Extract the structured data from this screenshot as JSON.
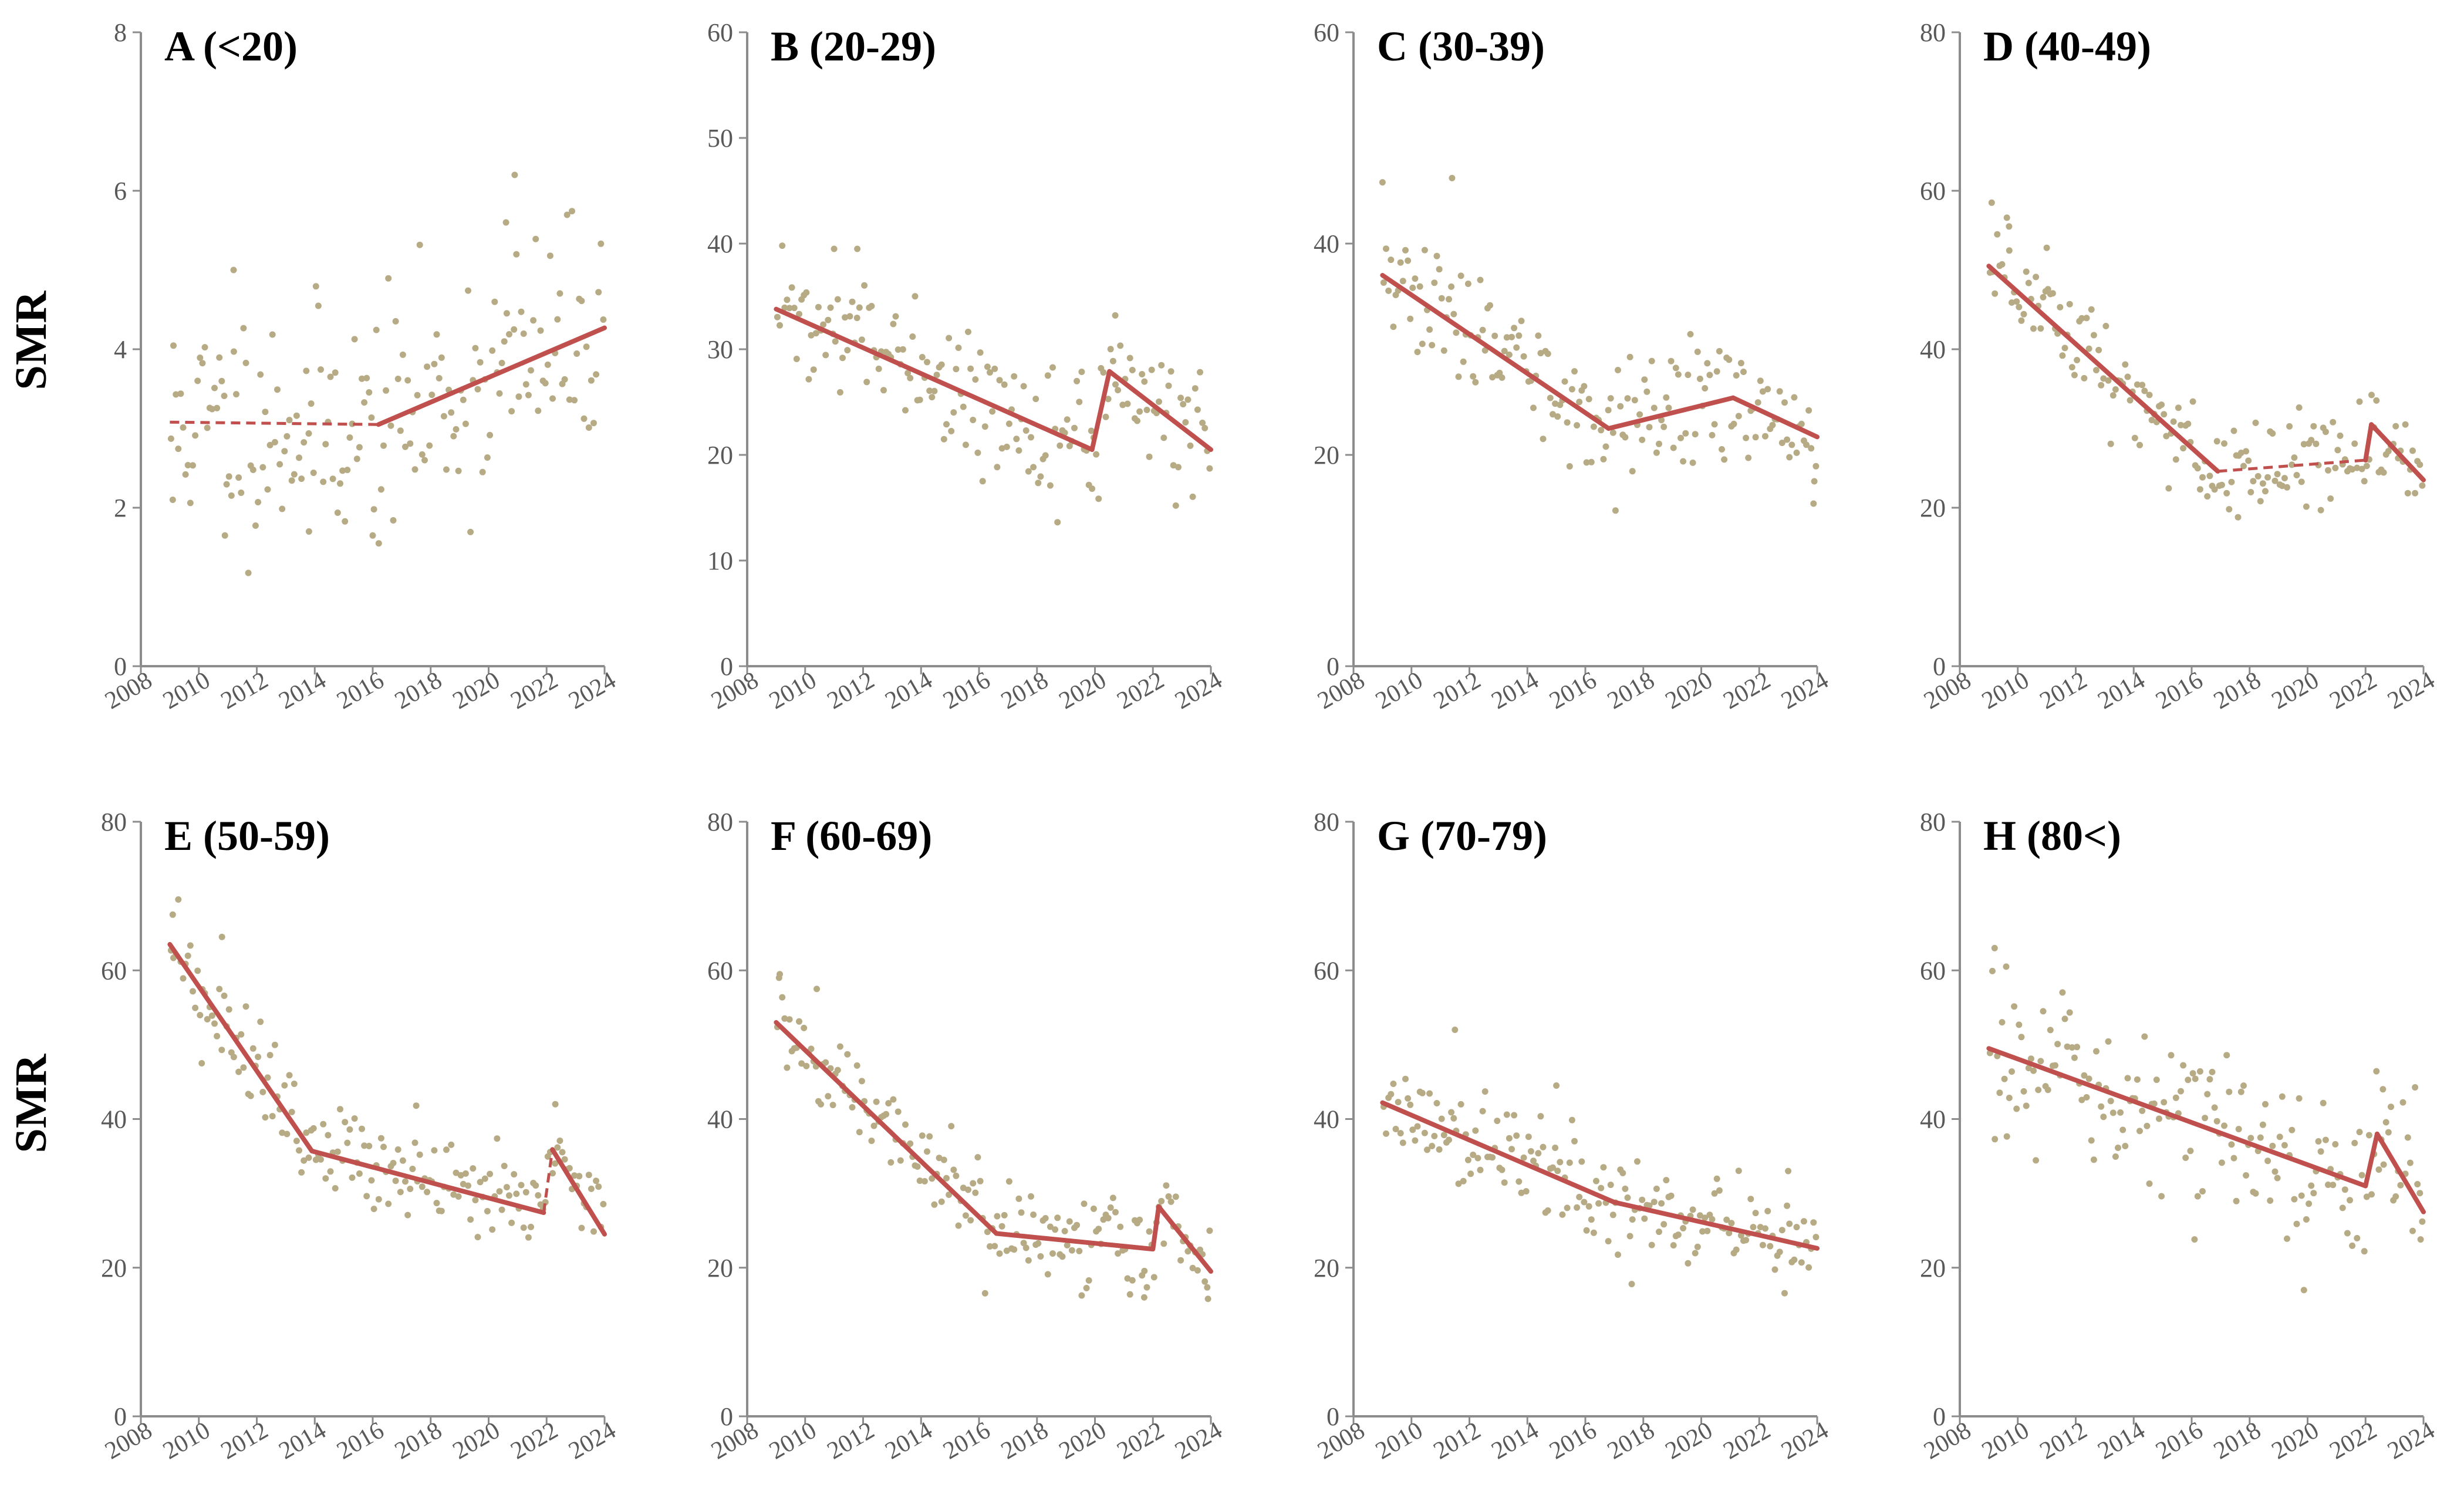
{
  "figure": {
    "ylabel_top": "SMR",
    "ylabel_bottom": "SMR"
  },
  "colors": {
    "trend": "#c0504d",
    "points": "#b7ab85",
    "axis": "#8c8c8c",
    "ticks": "#595959"
  },
  "chart_data": [
    {
      "id": "A",
      "type": "scatter",
      "title": "A (<20)",
      "xlim": [
        2008,
        2024
      ],
      "xticks": [
        "2008",
        "2010",
        "2012",
        "2014",
        "2016",
        "2018",
        "2020",
        "2022",
        "2024"
      ],
      "ylim": [
        0,
        8
      ],
      "yticks": [
        "0",
        "2",
        "4",
        "6",
        "8"
      ],
      "trend": [
        {
          "x": 2009.0,
          "y": 3.08
        },
        {
          "x": 2016.2,
          "y": 3.05
        },
        {
          "x": 2024.0,
          "y": 4.27
        }
      ],
      "dashed_segments": [
        0
      ],
      "scatter": {
        "seed": 11,
        "start": 2009.0,
        "n": 180,
        "noise": 0.75,
        "outliers": [
          [
            2009.1,
            2.1
          ],
          [
            2010.9,
            1.65
          ],
          [
            2013.8,
            1.7
          ],
          [
            2016.0,
            1.65
          ],
          [
            2020.9,
            6.2
          ],
          [
            2011.2,
            5.0
          ],
          [
            2020.6,
            5.6
          ]
        ]
      }
    },
    {
      "id": "B",
      "type": "scatter",
      "title": "B (20-29)",
      "xlim": [
        2008,
        2024
      ],
      "xticks": [
        "2008",
        "2010",
        "2012",
        "2014",
        "2016",
        "2018",
        "2020",
        "2022",
        "2024"
      ],
      "ylim": [
        0,
        60
      ],
      "yticks": [
        "0",
        "10",
        "20",
        "30",
        "40",
        "50",
        "60"
      ],
      "trend": [
        {
          "x": 2009.0,
          "y": 33.8
        },
        {
          "x": 2019.9,
          "y": 20.5
        },
        {
          "x": 2020.5,
          "y": 27.9
        },
        {
          "x": 2024.0,
          "y": 20.5
        }
      ],
      "dashed_segments": [],
      "scatter": {
        "seed": 22,
        "start": 2009.0,
        "n": 180,
        "noise": 2.8,
        "outliers": [
          [
            2011.0,
            39.5
          ],
          [
            2011.8,
            39.5
          ],
          [
            2019.9,
            16.8
          ],
          [
            2020.7,
            33.2
          ]
        ]
      }
    },
    {
      "id": "C",
      "type": "scatter",
      "title": "C (30-39)",
      "xlim": [
        2008,
        2024
      ],
      "xticks": [
        "2008",
        "2010",
        "2012",
        "2014",
        "2016",
        "2018",
        "2020",
        "2022",
        "2024"
      ],
      "ylim": [
        0,
        60
      ],
      "yticks": [
        "0",
        "20",
        "40",
        "60"
      ],
      "trend": [
        {
          "x": 2009.0,
          "y": 37.0
        },
        {
          "x": 2016.8,
          "y": 22.5
        },
        {
          "x": 2021.1,
          "y": 25.4
        },
        {
          "x": 2024.0,
          "y": 21.7
        }
      ],
      "dashed_segments": [],
      "scatter": {
        "seed": 33,
        "start": 2009.0,
        "n": 180,
        "noise": 2.7,
        "outliers": [
          [
            2009.0,
            45.8
          ],
          [
            2011.4,
            46.2
          ],
          [
            2023.9,
            17.5
          ]
        ]
      }
    },
    {
      "id": "D",
      "type": "scatter",
      "title": "D (40-49)",
      "xlim": [
        2008,
        2024
      ],
      "xticks": [
        "2008",
        "2010",
        "2012",
        "2014",
        "2016",
        "2018",
        "2020",
        "2022",
        "2024"
      ],
      "ylim": [
        0,
        80
      ],
      "yticks": [
        "0",
        "20",
        "40",
        "60",
        "80"
      ],
      "trend": [
        {
          "x": 2009.0,
          "y": 50.5
        },
        {
          "x": 2016.9,
          "y": 24.6
        },
        {
          "x": 2022.0,
          "y": 26.0
        },
        {
          "x": 2022.2,
          "y": 30.5
        },
        {
          "x": 2024.0,
          "y": 23.5
        }
      ],
      "dashed_segments": [
        1
      ],
      "scatter": {
        "seed": 44,
        "start": 2009.0,
        "n": 180,
        "noise": 3.4,
        "outliers": [
          [
            2009.1,
            58.5
          ],
          [
            2009.7,
            55.5
          ],
          [
            2011.0,
            52.8
          ],
          [
            2017.6,
            18.8
          ]
        ]
      }
    },
    {
      "id": "E",
      "type": "scatter",
      "title": "E (50-59)",
      "xlim": [
        2008,
        2024
      ],
      "xticks": [
        "2008",
        "2010",
        "2012",
        "2014",
        "2016",
        "2018",
        "2020",
        "2022",
        "2024"
      ],
      "ylim": [
        0,
        80
      ],
      "yticks": [
        "0",
        "20",
        "40",
        "60",
        "80"
      ],
      "trend": [
        {
          "x": 2009.0,
          "y": 63.5
        },
        {
          "x": 2013.9,
          "y": 35.7
        },
        {
          "x": 2021.9,
          "y": 27.4
        },
        {
          "x": 2022.2,
          "y": 35.9
        },
        {
          "x": 2024.0,
          "y": 24.5
        }
      ],
      "dashed_segments": [
        2
      ],
      "scatter": {
        "seed": 55,
        "start": 2009.0,
        "n": 180,
        "noise": 3.2,
        "outliers": [
          [
            2009.1,
            67.5
          ],
          [
            2010.8,
            64.5
          ],
          [
            2010.1,
            47.5
          ],
          [
            2017.5,
            41.8
          ],
          [
            2022.3,
            42.0
          ]
        ]
      }
    },
    {
      "id": "F",
      "type": "scatter",
      "title": "F (60-69)",
      "xlim": [
        2008,
        2024
      ],
      "xticks": [
        "2008",
        "2010",
        "2012",
        "2014",
        "2016",
        "2018",
        "2020",
        "2022",
        "2024"
      ],
      "ylim": [
        0,
        80
      ],
      "yticks": [
        "0",
        "20",
        "40",
        "60",
        "80"
      ],
      "trend": [
        {
          "x": 2009.0,
          "y": 53.0
        },
        {
          "x": 2016.6,
          "y": 24.6
        },
        {
          "x": 2022.0,
          "y": 22.5
        },
        {
          "x": 2022.2,
          "y": 28.2
        },
        {
          "x": 2024.0,
          "y": 19.5
        }
      ],
      "dashed_segments": [],
      "scatter": {
        "seed": 66,
        "start": 2009.0,
        "n": 180,
        "noise": 3.0,
        "outliers": [
          [
            2009.1,
            59.0
          ],
          [
            2010.4,
            57.5
          ],
          [
            2021.7,
            16.0
          ],
          [
            2023.9,
            15.8
          ]
        ]
      }
    },
    {
      "id": "G",
      "type": "scatter",
      "title": "G (70-79)",
      "xlim": [
        2008,
        2024
      ],
      "xticks": [
        "2008",
        "2010",
        "2012",
        "2014",
        "2016",
        "2018",
        "2020",
        "2022",
        "2024"
      ],
      "ylim": [
        0,
        80
      ],
      "yticks": [
        "0",
        "20",
        "40",
        "60",
        "80"
      ],
      "trend": [
        {
          "x": 2009.0,
          "y": 42.2
        },
        {
          "x": 2017.0,
          "y": 28.8
        },
        {
          "x": 2024.0,
          "y": 22.6
        }
      ],
      "dashed_segments": [],
      "scatter": {
        "seed": 77,
        "start": 2009.0,
        "n": 180,
        "noise": 3.6,
        "outliers": [
          [
            2011.5,
            52.0
          ],
          [
            2015.0,
            44.5
          ],
          [
            2017.6,
            17.8
          ],
          [
            2023.0,
            33.0
          ]
        ]
      }
    },
    {
      "id": "H",
      "type": "scatter",
      "title": "H (80<)",
      "xlim": [
        2008,
        2024
      ],
      "xticks": [
        "2008",
        "2010",
        "2012",
        "2014",
        "2016",
        "2018",
        "2020",
        "2022",
        "2024"
      ],
      "ylim": [
        0,
        80
      ],
      "yticks": [
        "0",
        "20",
        "40",
        "60",
        "80"
      ],
      "trend": [
        {
          "x": 2009.0,
          "y": 49.5
        },
        {
          "x": 2022.0,
          "y": 31.0
        },
        {
          "x": 2022.4,
          "y": 38.0
        },
        {
          "x": 2024.0,
          "y": 27.5
        }
      ],
      "dashed_segments": [],
      "scatter": {
        "seed": 88,
        "start": 2009.0,
        "n": 180,
        "noise": 5.2,
        "outliers": [
          [
            2009.2,
            63.0
          ],
          [
            2009.6,
            60.5
          ],
          [
            2016.1,
            23.8
          ],
          [
            2022.6,
            44.0
          ],
          [
            2023.9,
            23.8
          ]
        ]
      }
    }
  ]
}
